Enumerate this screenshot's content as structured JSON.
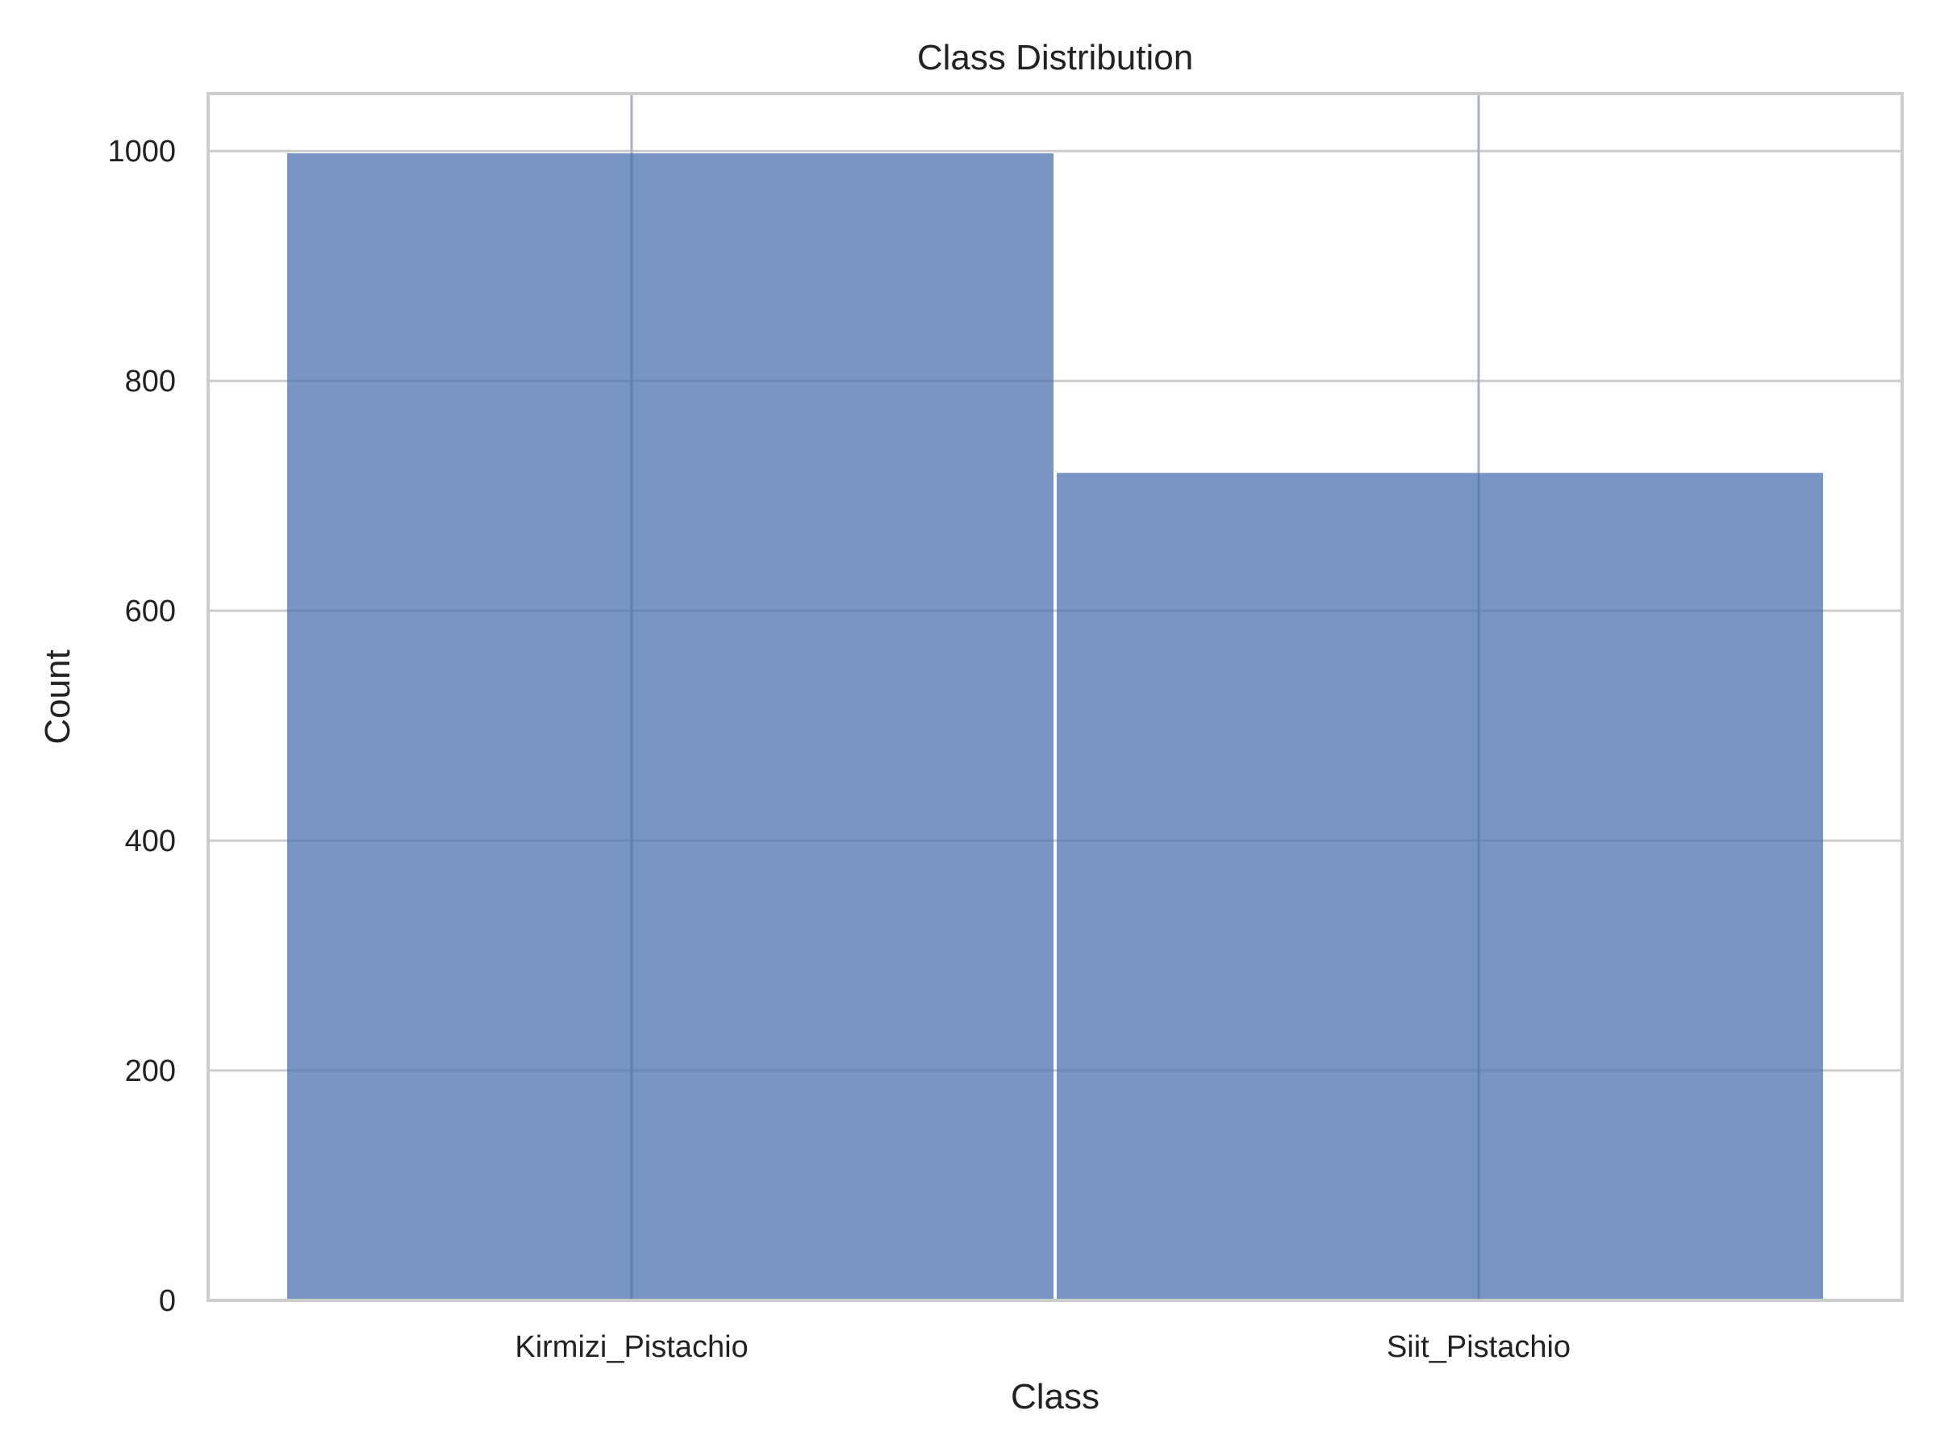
{
  "chart_data": {
    "type": "bar",
    "title": "Class Distribution",
    "xlabel": "Class",
    "ylabel": "Count",
    "categories": [
      "Kirmizi_Pistachio",
      "Siit_Pistachio"
    ],
    "values": [
      998,
      720
    ],
    "ylim": [
      0,
      1050
    ],
    "yticks": [
      0,
      200,
      400,
      600,
      800,
      1000
    ],
    "grid": true,
    "bar_color": "#4c72b0",
    "bar_opacity": 0.75,
    "grid_color": "#cccccc"
  }
}
